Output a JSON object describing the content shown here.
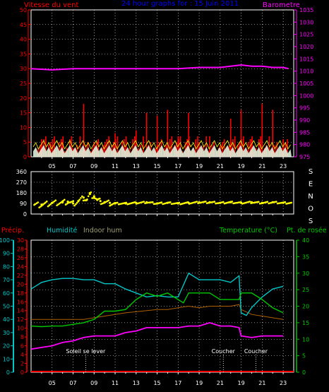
{
  "header": {
    "wind_label": "Vitesse du vent",
    "title": "24 hour graphs for : 15 Juin 2011",
    "barometer_label": "Barometre"
  },
  "colors": {
    "wind": "#ff0000",
    "gust": "#ffff00",
    "avg": "#ffffff",
    "barometer": "#ff00ff",
    "direction": "#ffff00",
    "precip": "#ff0000",
    "humidity": "#00c8c8",
    "indoor_hum": "#808000",
    "temperature": "#00c800",
    "dewpoint": "#ff00ff",
    "heat": "#b06000",
    "title": "#0000ff",
    "grid": "#ffffff"
  },
  "direction_letters": [
    "S",
    "E",
    "N",
    "O",
    "S"
  ],
  "bottom_legend": {
    "precip": "Précip.",
    "humidity": "Humidité",
    "indoor_hum": "Indoor hum",
    "temperature": "Temperature (°C)",
    "dewpoint": "Pt. de rosée"
  },
  "annotations": [
    {
      "text": "Soleil se lever",
      "hour": 8.2
    },
    {
      "text": "Coucher",
      "hour": 21.3
    },
    {
      "text": "Coucher",
      "hour": 24.4
    }
  ],
  "chart_data": [
    {
      "type": "bar",
      "name": "wind",
      "x_ticks": [
        "05",
        "07",
        "09",
        "11",
        "13",
        "15",
        "17",
        "19",
        "21",
        "19",
        "21",
        "23"
      ],
      "left_ticks": [
        "0",
        "5",
        "10",
        "15",
        "20",
        "25",
        "30",
        "35",
        "40",
        "45",
        "50"
      ],
      "right_ticks": [
        "975",
        "980",
        "985",
        "990",
        "995",
        "1000",
        "1005",
        "1010",
        "1015",
        "1020",
        "1025",
        "1030",
        "1035"
      ],
      "ylim_left": [
        0,
        50
      ],
      "ylim_right": [
        975,
        1035
      ],
      "barometer": {
        "x": [
          3,
          5,
          7,
          9,
          11,
          13,
          15,
          17,
          19,
          21,
          22,
          23,
          24,
          25,
          26,
          27,
          27.5
        ],
        "y": [
          1011,
          1010.5,
          1011,
          1011,
          1011,
          1011,
          1011,
          1011,
          1011.5,
          1011.5,
          1012,
          1012.5,
          1012,
          1012,
          1011.5,
          1011.5,
          1011
        ]
      },
      "wind_x": [
        4,
        5,
        6,
        7,
        8,
        9,
        10,
        11,
        12,
        13,
        14,
        15,
        16,
        17,
        18,
        19,
        20,
        21,
        22,
        23,
        24,
        25,
        26,
        27
      ],
      "wind_values": [
        6,
        4,
        5,
        3,
        18,
        5,
        4,
        8,
        3,
        9,
        15,
        14,
        16,
        7,
        15,
        5,
        7,
        4,
        13,
        16,
        6,
        18,
        16,
        6
      ]
    },
    {
      "type": "scatter",
      "name": "direction",
      "left_ticks": [
        "0",
        "90",
        "180",
        "270",
        "360"
      ],
      "ylim": [
        0,
        360
      ],
      "x": [
        4,
        5,
        6,
        6.5,
        7,
        7.5,
        8,
        8.3,
        8.6,
        9,
        9.3,
        9.6,
        10,
        10.5,
        11,
        12,
        13,
        14,
        15,
        16,
        17,
        18,
        19,
        20,
        21,
        22,
        23,
        24,
        25,
        26,
        27
      ],
      "y": [
        80,
        95,
        100,
        105,
        90,
        110,
        140,
        120,
        170,
        150,
        120,
        110,
        100,
        95,
        90,
        90,
        95,
        100,
        90,
        95,
        90,
        95,
        100,
        100,
        95,
        100,
        95,
        100,
        95,
        100,
        95
      ]
    },
    {
      "type": "line",
      "name": "climate",
      "prec_ticks": [
        "0",
        "2",
        "4",
        "6",
        "8",
        "10",
        "12",
        "14",
        "16",
        "18",
        "20",
        "22",
        "24",
        "26",
        "28",
        "30"
      ],
      "hum_ticks": [
        "0",
        "10",
        "20",
        "30",
        "40",
        "50",
        "60",
        "70",
        "80",
        "90",
        "100"
      ],
      "temp_ticks": [
        "0",
        "5",
        "10",
        "15",
        "20",
        "25",
        "30",
        "35",
        "40"
      ],
      "hum_lim": [
        0,
        100
      ],
      "temp_lim": [
        0,
        40
      ],
      "humidity": {
        "x": [
          3,
          4,
          5,
          6,
          7,
          8,
          9,
          10,
          11,
          12,
          13,
          14,
          15,
          16,
          17,
          17.5,
          18,
          19,
          20,
          21,
          22,
          22.8,
          23,
          23.5,
          24,
          25,
          26,
          27
        ],
        "y": [
          63,
          68,
          70,
          71,
          71,
          70,
          70,
          67,
          67,
          63,
          60,
          57,
          58,
          57,
          57,
          66,
          75,
          70,
          70,
          70,
          68,
          73,
          45,
          43,
          49,
          57,
          63,
          65
        ]
      },
      "temperature": {
        "x": [
          3,
          4,
          5,
          6,
          7,
          8,
          9,
          10,
          11,
          12,
          13,
          14,
          15,
          16,
          17,
          17.5,
          18,
          19,
          20,
          21,
          22,
          22.8,
          23,
          24,
          25,
          26,
          27
        ],
        "y": [
          14,
          13.8,
          14,
          14,
          14.5,
          15,
          16,
          18.5,
          18.5,
          19,
          22,
          24,
          23,
          24,
          22,
          21,
          24,
          24,
          24,
          22,
          22,
          22,
          24,
          24,
          22,
          19.5,
          18
        ]
      },
      "indoor_hum": {
        "x": [
          3,
          8,
          9,
          12,
          15,
          16,
          17,
          18,
          19,
          20,
          21,
          22,
          22.8,
          23,
          24,
          25,
          26,
          27
        ],
        "y": [
          16,
          16,
          16.5,
          18,
          19,
          19,
          19.5,
          20,
          19.5,
          20,
          20,
          20,
          20.5,
          19,
          17.5,
          17,
          16.5,
          16
        ]
      },
      "dewpoint": {
        "x": [
          3,
          4,
          5,
          6,
          7,
          8,
          9,
          10,
          11,
          12,
          13,
          14,
          15,
          16,
          17,
          18,
          19,
          20,
          21,
          22,
          22.8,
          23,
          24,
          25,
          26,
          27
        ],
        "y": [
          7,
          7.5,
          8,
          9,
          9.5,
          10.5,
          11,
          11,
          11,
          12,
          12.5,
          13.5,
          13.5,
          13.5,
          13.5,
          14,
          14,
          15,
          14,
          14,
          13.5,
          11,
          10.5,
          11,
          11,
          11
        ]
      }
    }
  ]
}
